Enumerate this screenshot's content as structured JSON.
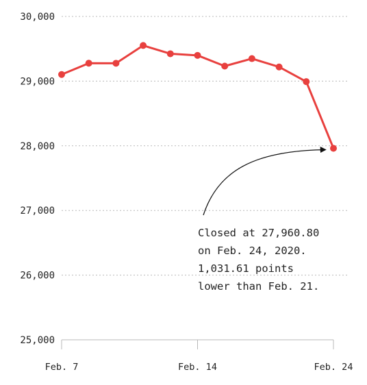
{
  "chart_data": {
    "type": "line",
    "title": "",
    "xlabel": "",
    "ylabel": "",
    "ylim": [
      25000,
      30000
    ],
    "grid": true,
    "y_ticks": [
      "25,000",
      "26,000",
      "27,000",
      "28,000",
      "29,000",
      "30,000"
    ],
    "y_tick_values": [
      25000,
      26000,
      27000,
      28000,
      29000,
      30000
    ],
    "x_ticks": [
      {
        "label": "Feb. 7",
        "index": 0
      },
      {
        "label": "Feb. 14",
        "index": 5
      },
      {
        "label": "Feb. 24",
        "index": 10
      }
    ],
    "series": [
      {
        "color": "#e8403e",
        "values": [
          29102,
          29277,
          29276,
          29551,
          29423,
          29398,
          29232,
          29348,
          29219,
          28992,
          27961
        ]
      }
    ],
    "annotation": {
      "lines": [
        "Closed at 27,960.80",
        "on Feb. 24, 2020.",
        "1,031.61 points",
        "lower than Feb. 21."
      ],
      "target_index": 10
    }
  }
}
